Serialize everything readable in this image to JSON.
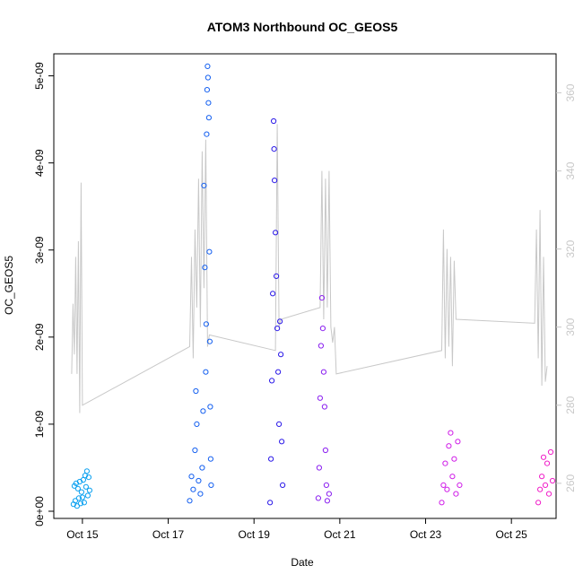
{
  "chart_data": {
    "type": "scatter",
    "title": "ATOM3 Northbound OC_GEOS5",
    "xlabel": "Date",
    "ylabel": "OC_GEOS5",
    "xlim": [
      "2016-10-14T08:00",
      "2016-10-26T01:00"
    ],
    "ylim": [
      0,
      5.15e-09
    ],
    "x_ticks": [
      {
        "date": "2016-10-15T00:00",
        "label": "Oct 15"
      },
      {
        "date": "2016-10-17T00:00",
        "label": "Oct 17"
      },
      {
        "date": "2016-10-19T00:00",
        "label": "Oct 19"
      },
      {
        "date": "2016-10-21T00:00",
        "label": "Oct 21"
      },
      {
        "date": "2016-10-23T00:00",
        "label": "Oct 23"
      },
      {
        "date": "2016-10-25T00:00",
        "label": "Oct 25"
      }
    ],
    "y_ticks": [
      {
        "value": 0,
        "label": "0e+00"
      },
      {
        "value": 1e-09,
        "label": "1e-09"
      },
      {
        "value": 2e-09,
        "label": "2e-09"
      },
      {
        "value": 3e-09,
        "label": "3e-09"
      },
      {
        "value": 4e-09,
        "label": "4e-09"
      },
      {
        "value": 5e-09,
        "label": "5e-09"
      }
    ],
    "y2lim": [
      251,
      370
    ],
    "y2_ticks": [
      {
        "value": 260,
        "label": "260"
      },
      {
        "value": 280,
        "label": "280"
      },
      {
        "value": 300,
        "label": "300"
      },
      {
        "value": 320,
        "label": "320"
      },
      {
        "value": 340,
        "label": "340"
      },
      {
        "value": 360,
        "label": "360"
      }
    ],
    "series": [
      {
        "color": "#0aa0f0",
        "points": [
          [
            "2016-10-14T19:00",
            8e-11
          ],
          [
            "2016-10-14T19:30",
            2.9e-10
          ],
          [
            "2016-10-14T20:00",
            1.2e-10
          ],
          [
            "2016-10-14T20:30",
            3.2e-10
          ],
          [
            "2016-10-14T21:00",
            6e-11
          ],
          [
            "2016-10-14T21:30",
            2.6e-10
          ],
          [
            "2016-10-14T22:00",
            1.5e-10
          ],
          [
            "2016-10-14T22:30",
            3.4e-10
          ],
          [
            "2016-10-14T23:00",
            9e-11
          ],
          [
            "2016-10-14T23:30",
            2.2e-10
          ],
          [
            "2016-10-15T00:00",
            1.6e-10
          ],
          [
            "2016-10-15T00:30",
            3.6e-10
          ],
          [
            "2016-10-15T01:00",
            1e-10
          ],
          [
            "2016-10-15T01:30",
            4.1e-10
          ],
          [
            "2016-10-15T02:00",
            2.8e-10
          ],
          [
            "2016-10-15T02:30",
            4.6e-10
          ],
          [
            "2016-10-15T03:00",
            1.8e-10
          ],
          [
            "2016-10-15T03:30",
            3.9e-10
          ],
          [
            "2016-10-15T04:00",
            2.4e-10
          ]
        ]
      },
      {
        "color": "#1560f0",
        "points": [
          [
            "2016-10-17T12:00",
            1.2e-10
          ],
          [
            "2016-10-17T13:00",
            4e-10
          ],
          [
            "2016-10-17T14:00",
            2.5e-10
          ],
          [
            "2016-10-17T15:00",
            7e-10
          ],
          [
            "2016-10-17T15:30",
            1.38e-09
          ],
          [
            "2016-10-17T16:00",
            1e-09
          ],
          [
            "2016-10-17T17:00",
            3.5e-10
          ],
          [
            "2016-10-17T18:00",
            2e-10
          ],
          [
            "2016-10-17T19:00",
            5e-10
          ],
          [
            "2016-10-17T19:30",
            1.15e-09
          ],
          [
            "2016-10-17T20:00",
            3.74e-09
          ],
          [
            "2016-10-17T20:30",
            2.8e-09
          ],
          [
            "2016-10-17T21:00",
            1.6e-09
          ],
          [
            "2016-10-17T21:15",
            2.15e-09
          ],
          [
            "2016-10-17T21:30",
            4.33e-09
          ],
          [
            "2016-10-17T21:45",
            4.84e-09
          ],
          [
            "2016-10-17T22:00",
            5.11e-09
          ],
          [
            "2016-10-17T22:15",
            4.98e-09
          ],
          [
            "2016-10-17T22:30",
            4.69e-09
          ],
          [
            "2016-10-17T22:45",
            4.52e-09
          ],
          [
            "2016-10-17T23:00",
            2.98e-09
          ],
          [
            "2016-10-17T23:15",
            1.95e-09
          ],
          [
            "2016-10-17T23:30",
            1.2e-09
          ],
          [
            "2016-10-17T23:45",
            6e-10
          ],
          [
            "2016-10-18T00:00",
            3e-10
          ]
        ]
      },
      {
        "color": "#2a18e8",
        "points": [
          [
            "2016-10-19T09:00",
            1e-10
          ],
          [
            "2016-10-19T09:30",
            6e-10
          ],
          [
            "2016-10-19T10:00",
            1.5e-09
          ],
          [
            "2016-10-19T10:30",
            2.5e-09
          ],
          [
            "2016-10-19T11:00",
            4.48e-09
          ],
          [
            "2016-10-19T11:15",
            4.16e-09
          ],
          [
            "2016-10-19T11:30",
            3.8e-09
          ],
          [
            "2016-10-19T12:00",
            3.2e-09
          ],
          [
            "2016-10-19T12:30",
            2.7e-09
          ],
          [
            "2016-10-19T13:00",
            2.1e-09
          ],
          [
            "2016-10-19T13:30",
            1.6e-09
          ],
          [
            "2016-10-19T14:00",
            1e-09
          ],
          [
            "2016-10-19T14:30",
            2.18e-09
          ],
          [
            "2016-10-19T15:00",
            1.8e-09
          ],
          [
            "2016-10-19T15:30",
            8e-10
          ],
          [
            "2016-10-19T16:00",
            3e-10
          ]
        ]
      },
      {
        "color": "#8a1ef0",
        "points": [
          [
            "2016-10-20T12:00",
            1.5e-10
          ],
          [
            "2016-10-20T12:30",
            5e-10
          ],
          [
            "2016-10-20T13:00",
            1.3e-09
          ],
          [
            "2016-10-20T13:30",
            1.9e-09
          ],
          [
            "2016-10-20T14:00",
            2.45e-09
          ],
          [
            "2016-10-20T14:30",
            2.1e-09
          ],
          [
            "2016-10-20T15:00",
            1.6e-09
          ],
          [
            "2016-10-20T15:30",
            1.2e-09
          ],
          [
            "2016-10-20T16:00",
            7e-10
          ],
          [
            "2016-10-20T16:30",
            3e-10
          ],
          [
            "2016-10-20T17:00",
            1.2e-10
          ],
          [
            "2016-10-20T18:00",
            2e-10
          ]
        ]
      },
      {
        "color": "#d01ee8",
        "points": [
          [
            "2016-10-23T09:00",
            1e-10
          ],
          [
            "2016-10-23T10:00",
            3e-10
          ],
          [
            "2016-10-23T11:00",
            5.5e-10
          ],
          [
            "2016-10-23T12:00",
            2.5e-10
          ],
          [
            "2016-10-23T13:00",
            7.5e-10
          ],
          [
            "2016-10-23T14:00",
            9e-10
          ],
          [
            "2016-10-23T15:00",
            4e-10
          ],
          [
            "2016-10-23T16:00",
            6e-10
          ],
          [
            "2016-10-23T17:00",
            2e-10
          ],
          [
            "2016-10-23T18:00",
            8e-10
          ],
          [
            "2016-10-23T19:00",
            3e-10
          ]
        ]
      },
      {
        "color": "#f01ec8",
        "points": [
          [
            "2016-10-25T15:00",
            1e-10
          ],
          [
            "2016-10-25T16:00",
            2.5e-10
          ],
          [
            "2016-10-25T17:00",
            4e-10
          ],
          [
            "2016-10-25T18:00",
            6.2e-10
          ],
          [
            "2016-10-25T19:00",
            3e-10
          ],
          [
            "2016-10-25T20:00",
            5.5e-10
          ],
          [
            "2016-10-25T21:00",
            2e-10
          ],
          [
            "2016-10-25T22:00",
            6.8e-10
          ],
          [
            "2016-10-25T23:00",
            3.5e-10
          ]
        ]
      }
    ],
    "secondary_line": {
      "color": "#c8c8c8",
      "points": [
        [
          "2016-10-14T18:00",
          288
        ],
        [
          "2016-10-14T18:45",
          306
        ],
        [
          "2016-10-14T19:30",
          293
        ],
        [
          "2016-10-14T20:15",
          318
        ],
        [
          "2016-10-14T21:00",
          288
        ],
        [
          "2016-10-14T21:45",
          322
        ],
        [
          "2016-10-14T22:30",
          278
        ],
        [
          "2016-10-14T23:15",
          337
        ],
        [
          "2016-10-15T00:00",
          280
        ],
        [
          "2016-10-17T12:00",
          295
        ],
        [
          "2016-10-17T13:00",
          318
        ],
        [
          "2016-10-17T14:00",
          292
        ],
        [
          "2016-10-17T15:00",
          325
        ],
        [
          "2016-10-17T16:00",
          305
        ],
        [
          "2016-10-17T17:00",
          338
        ],
        [
          "2016-10-17T18:00",
          300
        ],
        [
          "2016-10-17T19:00",
          345
        ],
        [
          "2016-10-17T20:00",
          310
        ],
        [
          "2016-10-17T21:00",
          348
        ],
        [
          "2016-10-17T22:00",
          295
        ],
        [
          "2016-10-17T23:00",
          298
        ],
        [
          "2016-10-19T12:00",
          294
        ],
        [
          "2016-10-19T13:00",
          352
        ],
        [
          "2016-10-19T14:00",
          300
        ],
        [
          "2016-10-19T15:00",
          302
        ],
        [
          "2016-10-20T13:00",
          305
        ],
        [
          "2016-10-20T14:00",
          340
        ],
        [
          "2016-10-20T15:00",
          302
        ],
        [
          "2016-10-20T16:00",
          338
        ],
        [
          "2016-10-20T17:00",
          305
        ],
        [
          "2016-10-20T18:00",
          340
        ],
        [
          "2016-10-20T19:00",
          300
        ],
        [
          "2016-10-20T20:00",
          296
        ],
        [
          "2016-10-20T21:00",
          300
        ],
        [
          "2016-10-20T22:00",
          288
        ],
        [
          "2016-10-23T09:00",
          294
        ],
        [
          "2016-10-23T10:00",
          325
        ],
        [
          "2016-10-23T11:00",
          292
        ],
        [
          "2016-10-23T12:00",
          320
        ],
        [
          "2016-10-23T13:00",
          295
        ],
        [
          "2016-10-23T14:00",
          318
        ],
        [
          "2016-10-23T15:00",
          290
        ],
        [
          "2016-10-23T16:00",
          317
        ],
        [
          "2016-10-23T17:00",
          302
        ],
        [
          "2016-10-25T13:00",
          301
        ],
        [
          "2016-10-25T14:00",
          325
        ],
        [
          "2016-10-25T15:00",
          292
        ],
        [
          "2016-10-25T16:00",
          330
        ],
        [
          "2016-10-25T17:00",
          285
        ],
        [
          "2016-10-25T18:00",
          318
        ],
        [
          "2016-10-25T19:00",
          286
        ],
        [
          "2016-10-25T20:00",
          290
        ]
      ]
    },
    "grid": false,
    "legend": "none"
  }
}
